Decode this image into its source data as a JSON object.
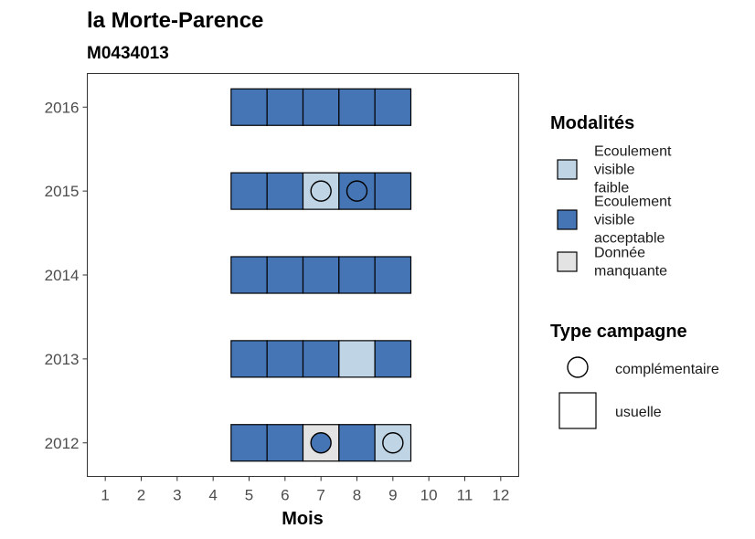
{
  "chart_data": {
    "type": "heatmap",
    "title": "la Morte-Parence",
    "subtitle": "M0434013",
    "xlabel": "Mois",
    "ylabel": "",
    "x_ticks": [
      "1",
      "2",
      "3",
      "4",
      "5",
      "6",
      "7",
      "8",
      "9",
      "10",
      "11",
      "12"
    ],
    "y_ticks": [
      "2012",
      "2013",
      "2014",
      "2015",
      "2016"
    ],
    "xlim": [
      0.5,
      12.5
    ],
    "ylim": [
      2011.6,
      2016.4
    ],
    "grid": false,
    "legend_placement": "right",
    "modalites": {
      "title": "Modalités",
      "items": [
        {
          "key": "faible",
          "lines": [
            "Ecoulement",
            "visible",
            "faible"
          ],
          "color": "#bfd5e6"
        },
        {
          "key": "acceptable",
          "lines": [
            "Ecoulement",
            "visible",
            "acceptable"
          ],
          "color": "#4575b4"
        },
        {
          "key": "manquante",
          "lines": [
            "Donnée",
            "manquante"
          ],
          "color": "#e3e3e3"
        }
      ]
    },
    "type_campagne": {
      "title": "Type campagne",
      "items": [
        {
          "key": "complementaire",
          "label": "complémentaire",
          "shape": "circle"
        },
        {
          "key": "usuelle",
          "label": "usuelle",
          "shape": "square"
        }
      ]
    },
    "cells": [
      {
        "year": 2016,
        "month": 5,
        "modalite": "acceptable",
        "type": "usuelle"
      },
      {
        "year": 2016,
        "month": 6,
        "modalite": "acceptable",
        "type": "usuelle"
      },
      {
        "year": 2016,
        "month": 7,
        "modalite": "acceptable",
        "type": "usuelle"
      },
      {
        "year": 2016,
        "month": 8,
        "modalite": "acceptable",
        "type": "usuelle"
      },
      {
        "year": 2016,
        "month": 9,
        "modalite": "acceptable",
        "type": "usuelle"
      },
      {
        "year": 2015,
        "month": 5,
        "modalite": "acceptable",
        "type": "usuelle"
      },
      {
        "year": 2015,
        "month": 6,
        "modalite": "acceptable",
        "type": "usuelle"
      },
      {
        "year": 2015,
        "month": 7,
        "modalite": "faible",
        "type": "usuelle",
        "circle": "faible"
      },
      {
        "year": 2015,
        "month": 8,
        "modalite": "acceptable",
        "type": "usuelle",
        "circle": "acceptable"
      },
      {
        "year": 2015,
        "month": 9,
        "modalite": "acceptable",
        "type": "usuelle"
      },
      {
        "year": 2014,
        "month": 5,
        "modalite": "acceptable",
        "type": "usuelle"
      },
      {
        "year": 2014,
        "month": 6,
        "modalite": "acceptable",
        "type": "usuelle"
      },
      {
        "year": 2014,
        "month": 7,
        "modalite": "acceptable",
        "type": "usuelle"
      },
      {
        "year": 2014,
        "month": 8,
        "modalite": "acceptable",
        "type": "usuelle"
      },
      {
        "year": 2014,
        "month": 9,
        "modalite": "acceptable",
        "type": "usuelle"
      },
      {
        "year": 2013,
        "month": 5,
        "modalite": "acceptable",
        "type": "usuelle"
      },
      {
        "year": 2013,
        "month": 6,
        "modalite": "acceptable",
        "type": "usuelle"
      },
      {
        "year": 2013,
        "month": 7,
        "modalite": "acceptable",
        "type": "usuelle"
      },
      {
        "year": 2013,
        "month": 8,
        "modalite": "faible",
        "type": "usuelle"
      },
      {
        "year": 2013,
        "month": 9,
        "modalite": "acceptable",
        "type": "usuelle"
      },
      {
        "year": 2012,
        "month": 5,
        "modalite": "acceptable",
        "type": "usuelle"
      },
      {
        "year": 2012,
        "month": 6,
        "modalite": "acceptable",
        "type": "usuelle"
      },
      {
        "year": 2012,
        "month": 7,
        "modalite": "manquante",
        "type": "usuelle",
        "circle": "acceptable"
      },
      {
        "year": 2012,
        "month": 8,
        "modalite": "acceptable",
        "type": "usuelle"
      },
      {
        "year": 2012,
        "month": 9,
        "modalite": "faible",
        "type": "usuelle",
        "circle": "faible"
      }
    ]
  }
}
